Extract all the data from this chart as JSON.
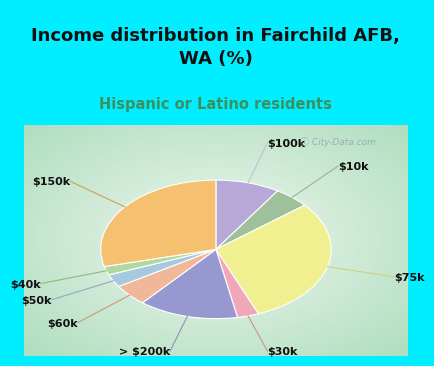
{
  "title": "Income distribution in Fairchild AFB,\nWA (%)",
  "subtitle": "Hispanic or Latino residents",
  "watermark": "ⓘ City-Data.com",
  "labels": [
    "$100k",
    "$10k",
    "$75k",
    "$30k",
    "> $200k",
    "$60k",
    "$50k",
    "$40k",
    "$150k"
  ],
  "values": [
    9,
    5,
    30,
    3,
    14,
    5,
    3,
    2,
    29
  ],
  "colors": [
    "#b8a8d8",
    "#9ec09a",
    "#f0f090",
    "#f0a8b8",
    "#9898d0",
    "#f0b898",
    "#a8c8e0",
    "#b0d8a0",
    "#f5c070"
  ],
  "startangle": 90,
  "bg_cyan": "#00eeff",
  "bg_chart_center": "#f0f8f0",
  "bg_chart_edge": "#b0ddc0",
  "title_color": "#111111",
  "subtitle_color": "#3a9060",
  "label_color": "#111111",
  "label_fontsize": 8,
  "title_fontsize": 13,
  "subtitle_fontsize": 10.5,
  "line_color_map": [
    "#c0c0d8",
    "#90b890",
    "#d0d080",
    "#d09090",
    "#9090b8",
    "#d09878",
    "#90a8c8",
    "#90b878",
    "#d0a050"
  ]
}
